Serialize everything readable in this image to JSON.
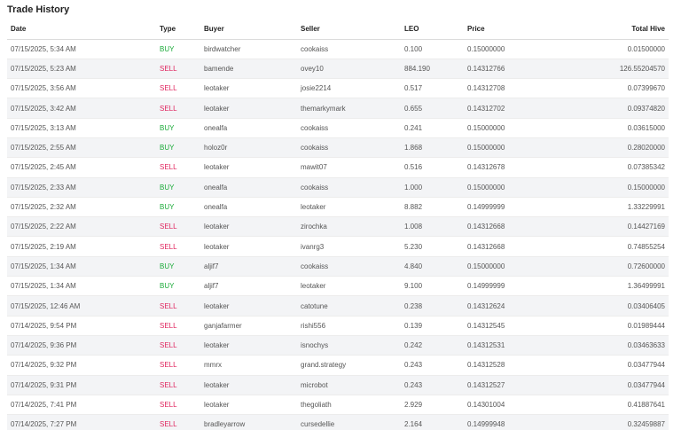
{
  "title": "Trade History",
  "columns": {
    "date": "Date",
    "type": "Type",
    "buyer": "Buyer",
    "seller": "Seller",
    "leo": "LEO",
    "price": "Price",
    "total": "Total Hive"
  },
  "colors": {
    "buy": "#1cab3a",
    "sell": "#e0245e"
  },
  "trades": [
    {
      "date": "07/15/2025, 5:34 AM",
      "type": "BUY",
      "buyer": "birdwatcher",
      "seller": "cookaiss",
      "leo": "0.100",
      "price": "0.15000000",
      "total": "0.01500000"
    },
    {
      "date": "07/15/2025, 5:23 AM",
      "type": "SELL",
      "buyer": "bamende",
      "seller": "ovey10",
      "leo": "884.190",
      "price": "0.14312766",
      "total": "126.55204570"
    },
    {
      "date": "07/15/2025, 3:56 AM",
      "type": "SELL",
      "buyer": "leotaker",
      "seller": "josie2214",
      "leo": "0.517",
      "price": "0.14312708",
      "total": "0.07399670"
    },
    {
      "date": "07/15/2025, 3:42 AM",
      "type": "SELL",
      "buyer": "leotaker",
      "seller": "themarkymark",
      "leo": "0.655",
      "price": "0.14312702",
      "total": "0.09374820"
    },
    {
      "date": "07/15/2025, 3:13 AM",
      "type": "BUY",
      "buyer": "onealfa",
      "seller": "cookaiss",
      "leo": "0.241",
      "price": "0.15000000",
      "total": "0.03615000"
    },
    {
      "date": "07/15/2025, 2:55 AM",
      "type": "BUY",
      "buyer": "holoz0r",
      "seller": "cookaiss",
      "leo": "1.868",
      "price": "0.15000000",
      "total": "0.28020000"
    },
    {
      "date": "07/15/2025, 2:45 AM",
      "type": "SELL",
      "buyer": "leotaker",
      "seller": "mawit07",
      "leo": "0.516",
      "price": "0.14312678",
      "total": "0.07385342"
    },
    {
      "date": "07/15/2025, 2:33 AM",
      "type": "BUY",
      "buyer": "onealfa",
      "seller": "cookaiss",
      "leo": "1.000",
      "price": "0.15000000",
      "total": "0.15000000"
    },
    {
      "date": "07/15/2025, 2:32 AM",
      "type": "BUY",
      "buyer": "onealfa",
      "seller": "leotaker",
      "leo": "8.882",
      "price": "0.14999999",
      "total": "1.33229991"
    },
    {
      "date": "07/15/2025, 2:22 AM",
      "type": "SELL",
      "buyer": "leotaker",
      "seller": "zirochka",
      "leo": "1.008",
      "price": "0.14312668",
      "total": "0.14427169"
    },
    {
      "date": "07/15/2025, 2:19 AM",
      "type": "SELL",
      "buyer": "leotaker",
      "seller": "ivanrg3",
      "leo": "5.230",
      "price": "0.14312668",
      "total": "0.74855254"
    },
    {
      "date": "07/15/2025, 1:34 AM",
      "type": "BUY",
      "buyer": "aljif7",
      "seller": "cookaiss",
      "leo": "4.840",
      "price": "0.15000000",
      "total": "0.72600000"
    },
    {
      "date": "07/15/2025, 1:34 AM",
      "type": "BUY",
      "buyer": "aljif7",
      "seller": "leotaker",
      "leo": "9.100",
      "price": "0.14999999",
      "total": "1.36499991"
    },
    {
      "date": "07/15/2025, 12:46 AM",
      "type": "SELL",
      "buyer": "leotaker",
      "seller": "catotune",
      "leo": "0.238",
      "price": "0.14312624",
      "total": "0.03406405"
    },
    {
      "date": "07/14/2025, 9:54 PM",
      "type": "SELL",
      "buyer": "ganjafarmer",
      "seller": "rishi556",
      "leo": "0.139",
      "price": "0.14312545",
      "total": "0.01989444"
    },
    {
      "date": "07/14/2025, 9:36 PM",
      "type": "SELL",
      "buyer": "leotaker",
      "seller": "isnochys",
      "leo": "0.242",
      "price": "0.14312531",
      "total": "0.03463633"
    },
    {
      "date": "07/14/2025, 9:32 PM",
      "type": "SELL",
      "buyer": "mmrx",
      "seller": "grand.strategy",
      "leo": "0.243",
      "price": "0.14312528",
      "total": "0.03477944"
    },
    {
      "date": "07/14/2025, 9:31 PM",
      "type": "SELL",
      "buyer": "leotaker",
      "seller": "microbot",
      "leo": "0.243",
      "price": "0.14312527",
      "total": "0.03477944"
    },
    {
      "date": "07/14/2025, 7:41 PM",
      "type": "SELL",
      "buyer": "leotaker",
      "seller": "thegoliath",
      "leo": "2.929",
      "price": "0.14301004",
      "total": "0.41887641"
    },
    {
      "date": "07/14/2025, 7:27 PM",
      "type": "SELL",
      "buyer": "bradleyarrow",
      "seller": "cursedellie",
      "leo": "2.164",
      "price": "0.14999948",
      "total": "0.32459887"
    }
  ]
}
